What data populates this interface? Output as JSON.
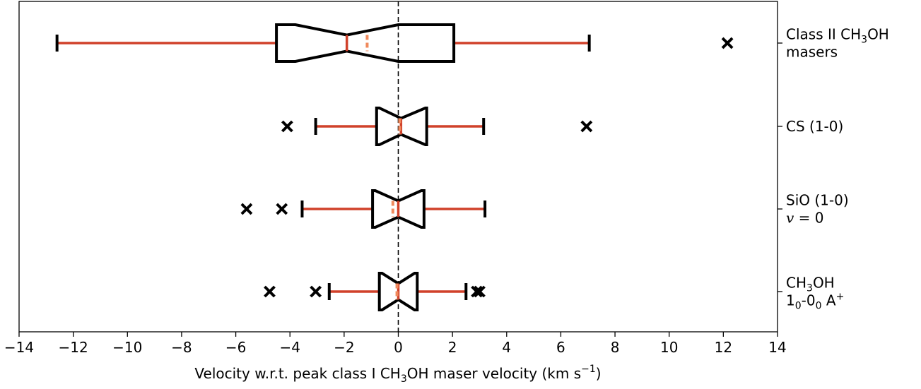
{
  "chart_data": {
    "type": "boxplot",
    "orientation": "horizontal",
    "notched": true,
    "xlabel": {
      "main": "Velocity w.r.t. peak class I CH",
      "sub": "3",
      "after": "OH maser velocity (km s",
      "sup": "−1",
      "close": ")"
    },
    "xlim": [
      -14,
      14
    ],
    "xticks": [
      -14,
      -12,
      -10,
      -8,
      -6,
      -4,
      -2,
      0,
      2,
      4,
      6,
      8,
      10,
      12,
      14
    ],
    "xtick_labels": [
      "−14",
      "−12",
      "−10",
      "−8",
      "−6",
      "−4",
      "−2",
      "0",
      "2",
      "4",
      "6",
      "8",
      "10",
      "12",
      "14"
    ],
    "reference_line_x": 0,
    "grid": false,
    "colors": {
      "box": "#000000",
      "whisker": "#d0412a",
      "median": "#d0412a",
      "mean": "#f08a5d",
      "reference": "#000000"
    },
    "series": [
      {
        "label_lines": [
          [
            "Class II CH",
            "3",
            "OH"
          ],
          [
            "masers"
          ]
        ],
        "whisker_low": -12.6,
        "q1": -4.5,
        "notch_low": -3.8,
        "median": -1.9,
        "notch_high": 0.0,
        "q3": 2.05,
        "whisker_high": 7.05,
        "mean": -1.15,
        "outliers": [
          12.15
        ]
      },
      {
        "label_lines": [
          [
            "CS (1-0)"
          ]
        ],
        "whisker_low": -3.05,
        "q1": -0.8,
        "notch_low": -0.7,
        "median": 0.1,
        "notch_high": 1.0,
        "q3": 1.05,
        "whisker_high": 3.15,
        "mean": 0.05,
        "outliers": [
          -4.1,
          6.95
        ]
      },
      {
        "label_lines": [
          [
            "SiO (1-0)"
          ],
          [
            "v = 0"
          ]
        ],
        "whisker_low": -3.55,
        "q1": -0.95,
        "notch_low": -0.85,
        "median": 0.0,
        "notch_high": 0.85,
        "q3": 0.95,
        "whisker_high": 3.2,
        "mean": -0.2,
        "outliers": [
          -5.6,
          -4.3
        ]
      },
      {
        "label_lines": [
          [
            "CH",
            "3",
            "OH"
          ],
          [
            "1",
            "0",
            "-0",
            "0",
            " A",
            "+"
          ]
        ],
        "whisker_low": -2.55,
        "q1": -0.7,
        "notch_low": -0.6,
        "median": 0.0,
        "notch_high": 0.6,
        "q3": 0.7,
        "whisker_high": 2.5,
        "mean": -0.05,
        "outliers": [
          -4.75,
          -3.05,
          2.9,
          3.0
        ]
      }
    ]
  }
}
